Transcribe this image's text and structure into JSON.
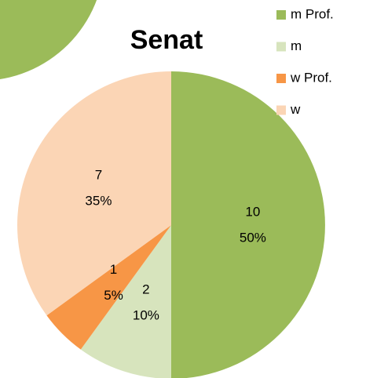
{
  "chart_data": {
    "type": "pie",
    "title": "Senat",
    "categories": [
      "m Prof.",
      "m",
      "w Prof.",
      "w"
    ],
    "values": [
      10,
      2,
      1,
      7
    ],
    "percentages": [
      50,
      10,
      5,
      35
    ],
    "percentage_labels": [
      "50%",
      "10%",
      "5%",
      "35%"
    ],
    "colors": [
      "#9bbb59",
      "#d7e4bd",
      "#f79646",
      "#fbd5b5"
    ],
    "legend": "top-right"
  }
}
